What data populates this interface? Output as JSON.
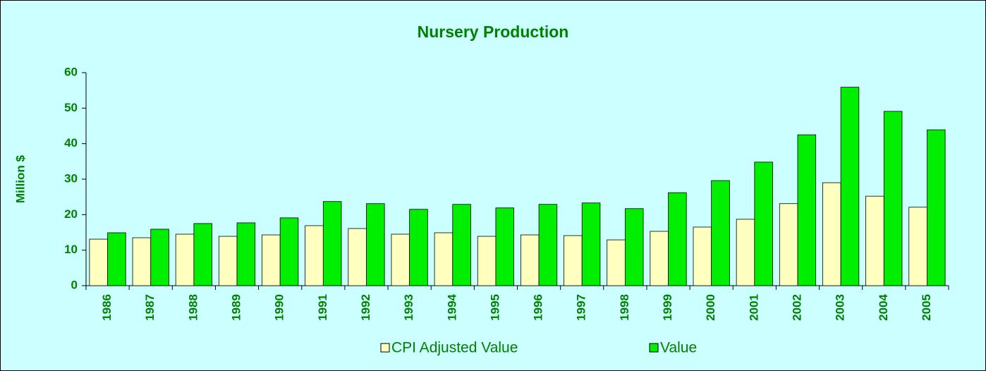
{
  "chart_data": {
    "type": "bar",
    "title": "Nursery Production",
    "y_label": "Million $",
    "categories": [
      "1986",
      "1987",
      "1988",
      "1989",
      "1990",
      "1991",
      "1992",
      "1993",
      "1994",
      "1995",
      "1996",
      "1997",
      "1998",
      "1999",
      "2000",
      "2001",
      "2002",
      "2003",
      "2004",
      "2005"
    ],
    "series": [
      {
        "name": "CPI Adjusted Value",
        "color": "#ffffc0",
        "values": [
          13.1,
          13.5,
          14.5,
          13.9,
          14.3,
          16.9,
          16.1,
          14.5,
          14.9,
          13.9,
          14.3,
          14.1,
          12.9,
          15.3,
          16.5,
          18.7,
          23.1,
          29.0,
          25.2,
          22.1
        ]
      },
      {
        "name": "Value",
        "color": "#00ee00",
        "values": [
          14.9,
          15.9,
          17.5,
          17.7,
          19.1,
          23.7,
          23.1,
          21.5,
          22.9,
          21.9,
          22.9,
          23.3,
          21.7,
          26.2,
          29.6,
          34.8,
          42.5,
          55.9,
          49.1,
          43.9
        ]
      }
    ],
    "ylim": [
      0,
      60
    ],
    "yticks": [
      0,
      10,
      20,
      30,
      40,
      50,
      60
    ],
    "legend": "bottom"
  }
}
